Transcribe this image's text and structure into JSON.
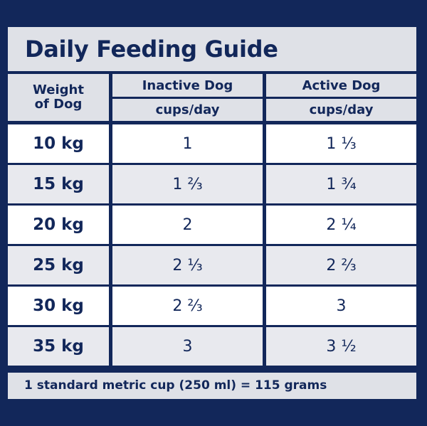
{
  "title": "Daily Feeding Guide",
  "columns": {
    "weight_line1": "Weight",
    "weight_line2": "of Dog",
    "inactive": "Inactive Dog",
    "inactive_unit": "cups/day",
    "active": "Active Dog",
    "active_unit": "cups/day"
  },
  "rows": [
    {
      "weight": "10 kg",
      "inactive": "1",
      "active": "1 ⅓"
    },
    {
      "weight": "15 kg",
      "inactive": "1 ⅔",
      "active": "1 ¾"
    },
    {
      "weight": "20 kg",
      "inactive": "2",
      "active": "2 ¼"
    },
    {
      "weight": "25 kg",
      "inactive": "2 ⅓",
      "active": "2 ⅔"
    },
    {
      "weight": "30 kg",
      "inactive": "2 ⅔",
      "active": "3"
    },
    {
      "weight": "35 kg",
      "inactive": "3",
      "active": "3 ½"
    }
  ],
  "footnote": "1 standard metric cup (250 ml) = 115 grams",
  "colors": {
    "navy": "#12275a",
    "light_gray": "#dfe1e7",
    "row_alt": "#e8e9ee",
    "white": "#ffffff"
  }
}
